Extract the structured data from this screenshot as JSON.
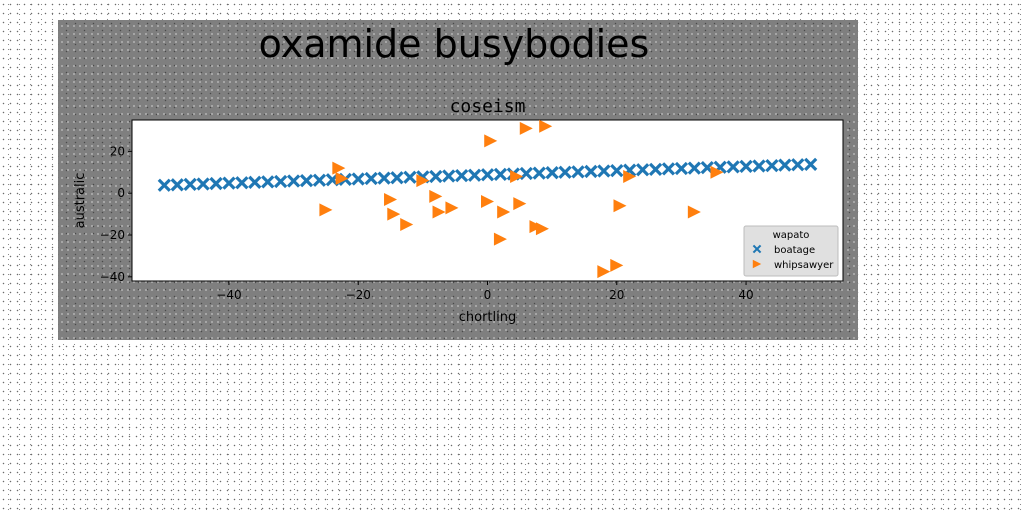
{
  "figure": {
    "suptitle": "oxamide busybodies"
  },
  "chart_data": {
    "type": "scatter",
    "title": "coseism",
    "xlabel": "chortling",
    "ylabel": "australic",
    "xlim": [
      -55,
      55
    ],
    "ylim": [
      -42,
      35
    ],
    "xticks": [
      -40,
      -20,
      0,
      20,
      40
    ],
    "yticks": [
      -40,
      -20,
      0,
      20
    ],
    "grid": false,
    "legend": {
      "title": "wapato",
      "placement": "lower-right"
    },
    "series": [
      {
        "name": "boatage",
        "marker": "x",
        "color": "#1f77b4",
        "x": [
          -50,
          -48,
          -46,
          -44,
          -42,
          -40,
          -38,
          -36,
          -34,
          -32,
          -30,
          -28,
          -26,
          -24,
          -22,
          -20,
          -18,
          -16,
          -14,
          -12,
          -10,
          -8,
          -6,
          -4,
          -2,
          0,
          2,
          4,
          6,
          8,
          10,
          12,
          14,
          16,
          18,
          20,
          22,
          24,
          26,
          28,
          30,
          32,
          34,
          36,
          38,
          40,
          42,
          44,
          46,
          48,
          50
        ],
        "y": [
          3.8,
          4.0,
          4.2,
          4.4,
          4.6,
          4.8,
          5.0,
          5.2,
          5.4,
          5.6,
          5.8,
          6.0,
          6.2,
          6.4,
          6.6,
          6.8,
          7.0,
          7.2,
          7.4,
          7.6,
          7.8,
          8.0,
          8.2,
          8.4,
          8.6,
          8.8,
          9.0,
          9.2,
          9.4,
          9.6,
          9.8,
          10.0,
          10.2,
          10.4,
          10.6,
          10.8,
          11.0,
          11.2,
          11.4,
          11.6,
          11.8,
          12.0,
          12.2,
          12.4,
          12.6,
          12.8,
          13.0,
          13.2,
          13.4,
          13.6,
          13.8
        ]
      },
      {
        "name": "whipsawyer",
        "marker": "triangle-right",
        "color": "#ff7f0e",
        "x": [
          -25,
          -23,
          -22.5,
          -15,
          -14.5,
          -12.5,
          -10,
          -8,
          -7.5,
          -5.5,
          0,
          0.5,
          2,
          2.5,
          5,
          4.5,
          6,
          7.5,
          8.5,
          9,
          18,
          20,
          20.5,
          22,
          32,
          35.5
        ],
        "y": [
          -8,
          12,
          7,
          -3,
          -10,
          -15,
          6,
          -1.5,
          -9,
          -7,
          -4,
          25,
          -22,
          -9,
          -5,
          8,
          31,
          -16,
          -17,
          32,
          -37.5,
          -34.5,
          -6,
          8,
          -9,
          10
        ]
      }
    ]
  }
}
